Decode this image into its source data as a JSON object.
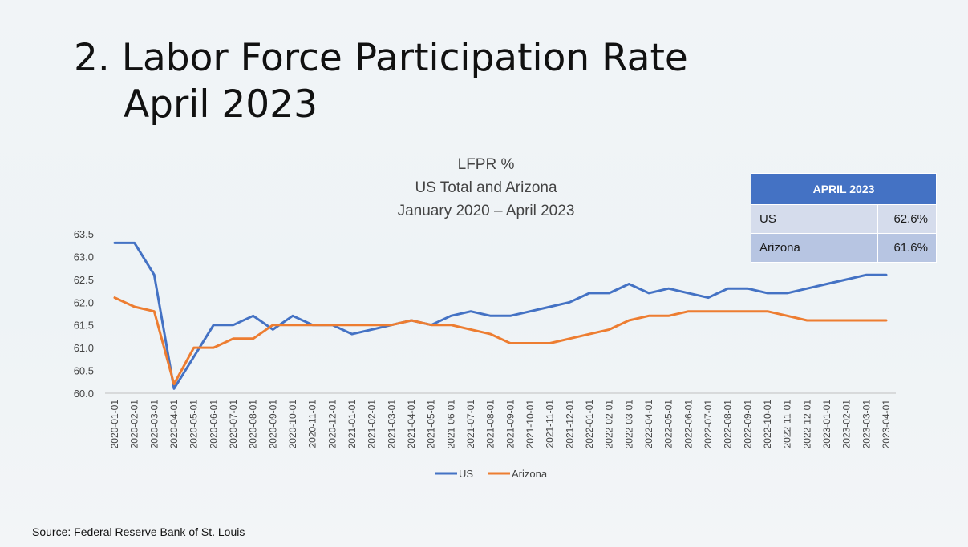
{
  "slide": {
    "title_line1": "2. Labor Force Participation Rate",
    "title_line2": "April 2023",
    "source": "Source: Federal Reserve Bank of St. Louis"
  },
  "summary_table": {
    "header": "APRIL 2023",
    "rows": [
      {
        "label": "US",
        "value": "62.6%"
      },
      {
        "label": "Arizona",
        "value": "61.6%"
      }
    ]
  },
  "colors": {
    "us": "#4472c4",
    "arizona": "#ed7d31"
  },
  "chart_data": {
    "type": "line",
    "title": [
      "LFPR %",
      "US Total and Arizona",
      "January 2020 – April 2023"
    ],
    "xlabel": "",
    "ylabel": "",
    "ylim": [
      60.0,
      63.5
    ],
    "ytick_step": 0.5,
    "grid": false,
    "legend": "bottom",
    "x": [
      "2020-01-01",
      "2020-02-01",
      "2020-03-01",
      "2020-04-01",
      "2020-05-01",
      "2020-06-01",
      "2020-07-01",
      "2020-08-01",
      "2020-09-01",
      "2020-10-01",
      "2020-11-01",
      "2020-12-01",
      "2021-01-01",
      "2021-02-01",
      "2021-03-01",
      "2021-04-01",
      "2021-05-01",
      "2021-06-01",
      "2021-07-01",
      "2021-08-01",
      "2021-09-01",
      "2021-10-01",
      "2021-11-01",
      "2021-12-01",
      "2022-01-01",
      "2022-02-01",
      "2022-03-01",
      "2022-04-01",
      "2022-05-01",
      "2022-06-01",
      "2022-07-01",
      "2022-08-01",
      "2022-09-01",
      "2022-10-01",
      "2022-11-01",
      "2022-12-01",
      "2023-01-01",
      "2023-02-01",
      "2023-03-01",
      "2023-04-01"
    ],
    "series": [
      {
        "name": "US",
        "color": "#4472c4",
        "values": [
          63.3,
          63.3,
          62.6,
          60.1,
          60.8,
          61.5,
          61.5,
          61.7,
          61.4,
          61.7,
          61.5,
          61.5,
          61.3,
          61.4,
          61.5,
          61.6,
          61.5,
          61.7,
          61.8,
          61.7,
          61.7,
          61.8,
          61.9,
          62.0,
          62.2,
          62.2,
          62.4,
          62.2,
          62.3,
          62.2,
          62.1,
          62.3,
          62.3,
          62.2,
          62.2,
          62.3,
          62.4,
          62.5,
          62.6,
          62.6
        ]
      },
      {
        "name": "Arizona",
        "color": "#ed7d31",
        "values": [
          62.1,
          61.9,
          61.8,
          60.2,
          61.0,
          61.0,
          61.2,
          61.2,
          61.5,
          61.5,
          61.5,
          61.5,
          61.5,
          61.5,
          61.5,
          61.6,
          61.5,
          61.5,
          61.4,
          61.3,
          61.1,
          61.1,
          61.1,
          61.2,
          61.3,
          61.4,
          61.6,
          61.7,
          61.7,
          61.8,
          61.8,
          61.8,
          61.8,
          61.8,
          61.7,
          61.6,
          61.6,
          61.6,
          61.6,
          61.6
        ]
      }
    ]
  }
}
